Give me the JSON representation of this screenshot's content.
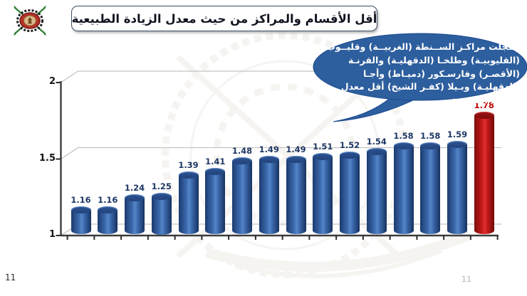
{
  "slide": {
    "footer": {
      "page_number": "11",
      "page_number_faint": "11"
    }
  },
  "callout": {
    "text": "سـجلت مراكـز الســنطة (الغربيــة) وقليــوب (القليوبيـة) وطلخـا (الدقهليـة) والقرنـة (الأقصـر) وفارسـكور (دميـاط) وأجـا (الدقهليـة) وبـيلا (كفـر الشيخ) أقل معدل للزيادة الطبيعية.",
    "fill_color": "#2D5E9E",
    "text_color": "#FFFFFF"
  },
  "chart_data": {
    "type": "bar",
    "subtype": "3d-cylinder",
    "title": "أقل الأقسام والمراكز من حيث معدل الزيادة الطبيعية",
    "values": [
      1.16,
      1.16,
      1.24,
      1.25,
      1.39,
      1.41,
      1.48,
      1.49,
      1.49,
      1.51,
      1.52,
      1.54,
      1.58,
      1.58,
      1.59,
      1.78
    ],
    "value_labels": [
      "1.16",
      "1.16",
      "1.24",
      "1.25",
      "1.39",
      "1.41",
      "1.48",
      "1.49",
      "1.49",
      "1.51",
      "1.52",
      "1.54",
      "1.58",
      "1.58",
      "1.59",
      "1.78"
    ],
    "categories": [
      "",
      "",
      "",
      "",
      "",
      "",
      "",
      "",
      "",
      "",
      "",
      "",
      "",
      "",
      "",
      ""
    ],
    "x_tick_labels_visible": false,
    "highlight_index": 15,
    "ytick_labels": [
      "1",
      "1.5",
      "2"
    ],
    "ytick_values": [
      1,
      1.5,
      2
    ],
    "ylim": [
      1,
      2
    ],
    "grid": true,
    "legend": "none",
    "bar_color": "#2F5B9E",
    "highlight_color": "#C00000",
    "value_label_color": "#1F3864",
    "highlight_value_label_color": "#C00000"
  }
}
